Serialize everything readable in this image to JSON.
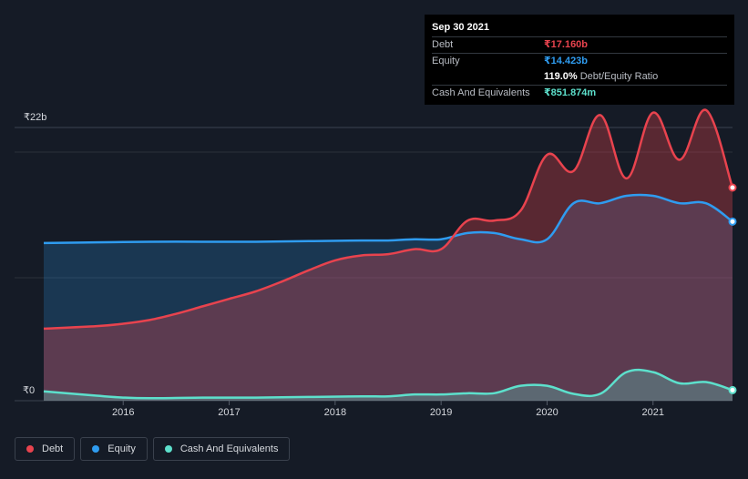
{
  "tooltip": {
    "date": "Sep 30 2021",
    "rows": [
      {
        "label": "Debt",
        "value": "₹17.160b",
        "color": "#e8434e"
      },
      {
        "label": "Equity",
        "value": "₹14.423b",
        "color": "#2f9cf0"
      },
      {
        "label": "",
        "value": "119.0%",
        "extra": "Debt/Equity Ratio",
        "color": "#ffffff"
      },
      {
        "label": "Cash And Equivalents",
        "value": "₹851.874m",
        "color": "#5de0cc"
      }
    ]
  },
  "legend": [
    {
      "label": "Debt",
      "color": "#e8434e"
    },
    {
      "label": "Equity",
      "color": "#2f9cf0"
    },
    {
      "label": "Cash And Equivalents",
      "color": "#5de0cc"
    }
  ],
  "chart_data": {
    "type": "area",
    "y_top_label": "₹22b",
    "y_bottom_label": "₹0",
    "ylim": [
      0,
      22
    ],
    "xlim": [
      2015.25,
      2021.75
    ],
    "x_ticks": [
      2016,
      2017,
      2018,
      2019,
      2020,
      2021
    ],
    "x_tick_labels": [
      "2016",
      "2017",
      "2018",
      "2019",
      "2020",
      "2021"
    ],
    "series": [
      {
        "name": "Debt",
        "color": "#e8434e",
        "points": [
          [
            2015.25,
            5.8
          ],
          [
            2015.75,
            6.0
          ],
          [
            2016.0,
            6.2
          ],
          [
            2016.25,
            6.5
          ],
          [
            2016.5,
            7.0
          ],
          [
            2016.75,
            7.6
          ],
          [
            2017.0,
            8.2
          ],
          [
            2017.25,
            8.8
          ],
          [
            2017.5,
            9.6
          ],
          [
            2017.75,
            10.5
          ],
          [
            2018.0,
            11.3
          ],
          [
            2018.25,
            11.7
          ],
          [
            2018.5,
            11.8
          ],
          [
            2018.75,
            12.2
          ],
          [
            2019.0,
            12.2
          ],
          [
            2019.25,
            14.5
          ],
          [
            2019.5,
            14.5
          ],
          [
            2019.75,
            15.3
          ],
          [
            2020.0,
            19.8
          ],
          [
            2020.25,
            18.5
          ],
          [
            2020.5,
            23.0
          ],
          [
            2020.75,
            17.9
          ],
          [
            2021.0,
            23.2
          ],
          [
            2021.25,
            19.4
          ],
          [
            2021.5,
            23.4
          ],
          [
            2021.75,
            17.16
          ]
        ]
      },
      {
        "name": "Equity",
        "color": "#2f9cf0",
        "points": [
          [
            2015.25,
            12.7
          ],
          [
            2015.75,
            12.75
          ],
          [
            2016.25,
            12.8
          ],
          [
            2016.75,
            12.8
          ],
          [
            2017.25,
            12.8
          ],
          [
            2017.75,
            12.85
          ],
          [
            2018.25,
            12.9
          ],
          [
            2018.5,
            12.9
          ],
          [
            2018.75,
            13.0
          ],
          [
            2019.0,
            13.0
          ],
          [
            2019.25,
            13.5
          ],
          [
            2019.5,
            13.5
          ],
          [
            2019.75,
            13.0
          ],
          [
            2020.0,
            13.0
          ],
          [
            2020.25,
            15.9
          ],
          [
            2020.5,
            15.9
          ],
          [
            2020.75,
            16.5
          ],
          [
            2021.0,
            16.5
          ],
          [
            2021.25,
            15.9
          ],
          [
            2021.5,
            15.9
          ],
          [
            2021.75,
            14.423
          ]
        ]
      },
      {
        "name": "Cash And Equivalents",
        "color": "#5de0cc",
        "points": [
          [
            2015.25,
            0.75
          ],
          [
            2015.75,
            0.4
          ],
          [
            2016.0,
            0.25
          ],
          [
            2016.25,
            0.2
          ],
          [
            2016.75,
            0.25
          ],
          [
            2017.25,
            0.25
          ],
          [
            2017.75,
            0.3
          ],
          [
            2018.25,
            0.35
          ],
          [
            2018.5,
            0.35
          ],
          [
            2018.75,
            0.5
          ],
          [
            2019.0,
            0.5
          ],
          [
            2019.25,
            0.6
          ],
          [
            2019.5,
            0.6
          ],
          [
            2019.75,
            1.2
          ],
          [
            2020.0,
            1.2
          ],
          [
            2020.25,
            0.55
          ],
          [
            2020.5,
            0.55
          ],
          [
            2020.75,
            2.3
          ],
          [
            2021.0,
            2.3
          ],
          [
            2021.25,
            1.4
          ],
          [
            2021.5,
            1.5
          ],
          [
            2021.75,
            0.851874
          ]
        ]
      }
    ]
  }
}
